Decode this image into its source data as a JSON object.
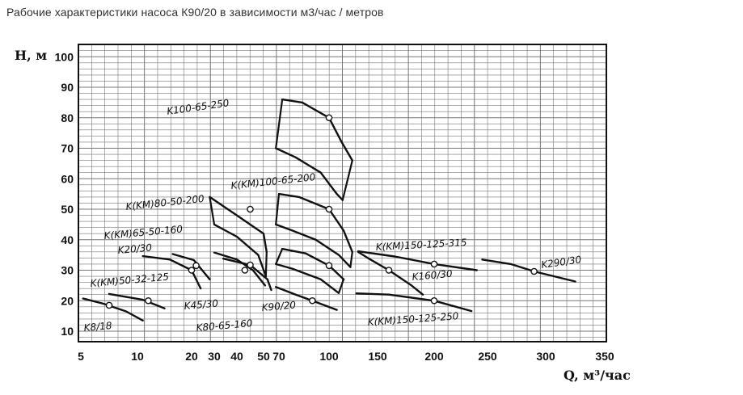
{
  "title": "Рабочие характеристики насоса К90/20 в зависимости  м3/час / метров",
  "chart_data": {
    "type": "line",
    "title": "Рабочие характеристики насоса К90/20 в зависимости  м3/час / метров",
    "ylabel": "H, м",
    "xlabel": "Q, м³/час",
    "x_ticks": [
      "5",
      "10",
      "20",
      "30",
      "40",
      "50",
      "70",
      "100",
      "150",
      "200",
      "250",
      "300",
      "350"
    ],
    "y_ticks": [
      "10",
      "20",
      "30",
      "40",
      "50",
      "60",
      "70",
      "80",
      "90",
      "100"
    ],
    "ylim": [
      6,
      103
    ],
    "grid": true,
    "series": [
      {
        "name": "K8/18",
        "points": [
          [
            5.2,
            20.7
          ],
          [
            7,
            19
          ],
          [
            9,
            16.5
          ],
          [
            11,
            13.5
          ]
        ],
        "op": [
          7.5,
          18.5
        ]
      },
      {
        "name": "K(KM)50-32-125",
        "points": [
          [
            7.5,
            22.2
          ],
          [
            11,
            20.3
          ],
          [
            15,
            17.5
          ]
        ],
        "op": [
          12,
          20
        ]
      },
      {
        "name": "K20/30",
        "points": [
          [
            11,
            34.6
          ],
          [
            16,
            33.5
          ],
          [
            20,
            30
          ],
          [
            24,
            24
          ]
        ],
        "op": [
          20,
          30
        ]
      },
      {
        "name": "K(KM)65-50-160",
        "points": [
          [
            16.5,
            35.3
          ],
          [
            21,
            33.3
          ],
          [
            28,
            27
          ]
        ],
        "op": [
          22,
          31.5
        ]
      },
      {
        "name": "K(KM)80-50-200",
        "points": [
          [
            28,
            54
          ],
          [
            40,
            48
          ],
          [
            50,
            42
          ],
          [
            54,
            36
          ]
        ],
        "op": [
          45,
          50
        ]
      },
      {
        "name": "K(KM)80-50-200",
        "points": [
          [
            30,
            45
          ],
          [
            40,
            41
          ],
          [
            48,
            35
          ],
          [
            53,
            28
          ]
        ]
      },
      {
        "name": "K45/30",
        "points": [
          [
            30,
            35.8
          ],
          [
            40,
            33.5
          ],
          [
            46,
            30
          ],
          [
            52,
            25
          ]
        ],
        "op": [
          43,
          30
        ]
      },
      {
        "name": "K80-65-160",
        "points": [
          [
            34,
            33.8
          ],
          [
            45,
            31.7
          ],
          [
            55,
            27
          ],
          [
            60,
            23.5
          ]
        ],
        "op": [
          45,
          31.7
        ]
      },
      {
        "name": "K100-65-250",
        "points": [
          [
            72,
            86
          ],
          [
            84,
            85
          ],
          [
            100,
            80
          ],
          [
            113,
            72
          ],
          [
            124,
            66
          ]
        ],
        "op": [
          100,
          80
        ]
      },
      {
        "name": "K100-65-250",
        "points": [
          [
            66,
            70
          ],
          [
            80,
            67
          ],
          [
            95,
            62
          ],
          [
            108,
            55
          ],
          [
            114,
            53
          ]
        ]
      },
      {
        "name": "K(KM)100-65-200",
        "points": [
          [
            70,
            55
          ],
          [
            82,
            54
          ],
          [
            100,
            50
          ],
          [
            115,
            43
          ],
          [
            124,
            36
          ]
        ],
        "op": [
          100,
          50
        ]
      },
      {
        "name": "K(KM)100-65-200",
        "points": [
          [
            66,
            45
          ],
          [
            78,
            43
          ],
          [
            92,
            40
          ],
          [
            110,
            35
          ],
          [
            122,
            31
          ]
        ]
      },
      {
        "name": "K(KM)100-65-200",
        "points": [
          [
            72,
            37
          ],
          [
            86,
            35.5
          ],
          [
            100,
            31.5
          ],
          [
            115,
            27
          ]
        ],
        "op": [
          100,
          31.5
        ]
      },
      {
        "name": "K(KM)100-65-200",
        "points": [
          [
            66,
            32
          ],
          [
            78,
            30.5
          ],
          [
            95,
            27
          ],
          [
            110,
            22.5
          ]
        ]
      },
      {
        "name": "K90/20",
        "points": [
          [
            66,
            24.5
          ],
          [
            80,
            22
          ],
          [
            90,
            20
          ],
          [
            108,
            17
          ]
        ],
        "op": [
          90,
          20
        ]
      },
      {
        "name": "K(KM)150-125-315",
        "points": [
          [
            130,
            36
          ],
          [
            140,
            34
          ],
          [
            160,
            30
          ],
          [
            180,
            25
          ],
          [
            190,
            22
          ]
        ],
        "op": [
          160,
          30
        ]
      },
      {
        "name": "K160/30",
        "points": [
          [
            130,
            36.2
          ],
          [
            165,
            34.5
          ],
          [
            200,
            32
          ],
          [
            240,
            30
          ]
        ],
        "op": [
          200,
          32
        ]
      },
      {
        "name": "K(KM)150-125-250",
        "points": [
          [
            128,
            22.4
          ],
          [
            160,
            22
          ],
          [
            200,
            20
          ],
          [
            235,
            16.6
          ]
        ],
        "op": [
          200,
          20
        ]
      },
      {
        "name": "K290/30",
        "points": [
          [
            245,
            33.5
          ],
          [
            270,
            32
          ],
          [
            290,
            29.6
          ],
          [
            325,
            26.3
          ]
        ],
        "op": [
          290,
          29.6
        ]
      }
    ],
    "envelopes": [
      {
        "name": "K100-65-250",
        "points": [
          [
            72,
            86
          ],
          [
            66,
            70
          ],
          [
            114,
            53
          ],
          [
            124,
            66
          ]
        ]
      },
      {
        "name": "K(KM)80-50-200",
        "points": [
          [
            28,
            54
          ],
          [
            30,
            45
          ],
          [
            53,
            28
          ],
          [
            54,
            36
          ]
        ]
      },
      {
        "name": "K(KM)100-65-200",
        "points": [
          [
            70,
            55
          ],
          [
            66,
            45
          ],
          [
            122,
            31
          ],
          [
            124,
            36
          ]
        ]
      },
      {
        "name": "K(KM)100-65-200",
        "points": [
          [
            72,
            37
          ],
          [
            66,
            32
          ],
          [
            110,
            22.5
          ],
          [
            115,
            27
          ]
        ]
      }
    ],
    "annotations": [
      "K100-65-250",
      "K(KM)100-65-200",
      "K(KM)80-50-200",
      "K(KM)65-50-160",
      "K20/30",
      "K(KM)50-32-125",
      "K8/18",
      "K45/30",
      "K80-65-160",
      "K90/20",
      "K(KM)150-125-315",
      "K160/30",
      "K290/30",
      "K(KM)150-125-250"
    ]
  }
}
